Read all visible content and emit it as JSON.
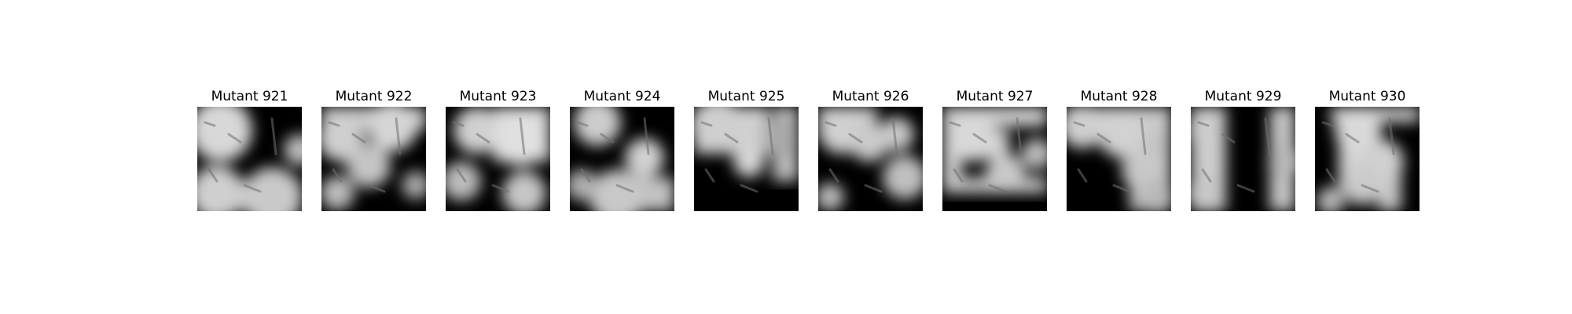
{
  "panels": [
    {
      "title": "Mutant 921",
      "icon": "grayscale-mask-image"
    },
    {
      "title": "Mutant 922",
      "icon": "grayscale-mask-image"
    },
    {
      "title": "Mutant 923",
      "icon": "grayscale-mask-image"
    },
    {
      "title": "Mutant 924",
      "icon": "grayscale-mask-image"
    },
    {
      "title": "Mutant 925",
      "icon": "grayscale-mask-image"
    },
    {
      "title": "Mutant 926",
      "icon": "grayscale-mask-image"
    },
    {
      "title": "Mutant 927",
      "icon": "grayscale-mask-image"
    },
    {
      "title": "Mutant 928",
      "icon": "grayscale-mask-image"
    },
    {
      "title": "Mutant 929",
      "icon": "grayscale-mask-image"
    },
    {
      "title": "Mutant 930",
      "icon": "grayscale-mask-image"
    }
  ]
}
